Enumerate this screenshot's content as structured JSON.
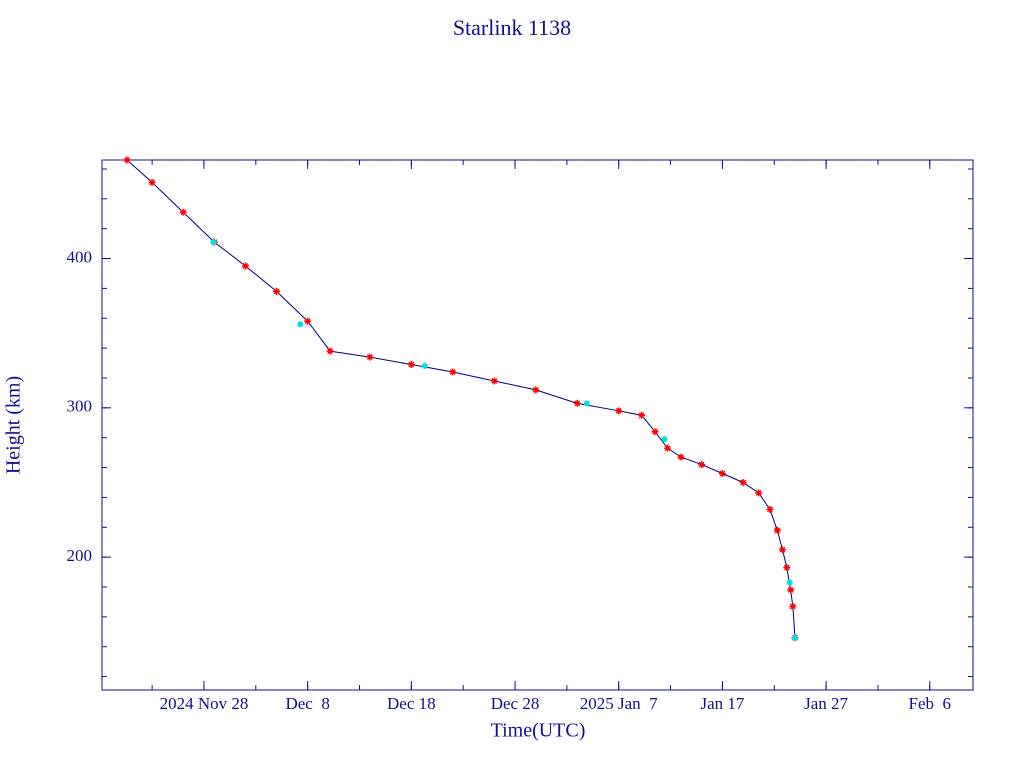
{
  "chart_data": {
    "type": "line",
    "title": "Starlink 1138",
    "xlabel": "Time(UTC)",
    "ylabel": "Height (km)",
    "xlim": [
      "2024-11-18T04:00",
      "2025-02-10T04:00"
    ],
    "xticks": [
      {
        "value": "2024-11-28T00:00",
        "label": "2024 Nov 28"
      },
      {
        "value": "2024-12-08T00:00",
        "label": "Dec  8"
      },
      {
        "value": "2024-12-18T00:00",
        "label": "Dec 18"
      },
      {
        "value": "2024-12-28T00:00",
        "label": "Dec 28"
      },
      {
        "value": "2025-01-07T00:00",
        "label": "2025 Jan  7"
      },
      {
        "value": "2025-01-17T00:00",
        "label": "Jan 17"
      },
      {
        "value": "2025-01-27T00:00",
        "label": "Jan 27"
      },
      {
        "value": "2025-02-06T00:00",
        "label": "Feb  6"
      }
    ],
    "ylim": [
      111,
      466
    ],
    "yticks": [
      200,
      300,
      400
    ],
    "series": [
      {
        "color": "#000080",
        "marker_color": "#ff0000",
        "x": [
          "2024-11-20T14:00",
          "2024-11-23T00:00",
          "2024-11-26T00:00",
          "2024-11-29T00:00",
          "2024-12-02T00:00",
          "2024-12-05T00:00",
          "2024-12-08T00:00",
          "2024-12-10T04:00",
          "2024-12-14T00:00",
          "2024-12-18T00:00",
          "2024-12-22T00:00",
          "2024-12-26T00:00",
          "2024-12-30T00:00",
          "2025-01-03T00:00",
          "2025-01-07T00:00",
          "2025-01-09T05:00",
          "2025-01-10T12:00",
          "2025-01-11T17:00",
          "2025-01-13T00:00",
          "2025-01-15T00:00",
          "2025-01-17T00:00",
          "2025-01-19T00:00",
          "2025-01-20T12:00",
          "2025-01-21T14:00",
          "2025-01-22T07:00",
          "2025-01-22T19:00",
          "2025-01-23T05:00",
          "2025-01-23T14:00",
          "2025-01-23T19:00",
          "2025-01-24T00:00"
        ],
        "values": [
          466,
          451,
          431,
          411,
          395,
          378,
          358,
          338,
          334,
          329,
          324,
          318,
          312,
          303,
          298,
          295,
          284,
          273,
          267,
          262,
          256,
          250,
          243,
          232,
          218,
          205,
          193,
          178,
          167,
          146
        ]
      },
      {
        "type": "scatter",
        "color": "#00e0e0",
        "x": [
          "2024-11-28T22:00",
          "2024-12-07T07:00",
          "2024-12-19T07:00",
          "2025-01-03T22:00",
          "2025-01-11T10:00",
          "2025-01-23T12:00",
          "2025-01-24T00:00"
        ],
        "values": [
          411,
          356,
          328,
          303,
          279,
          183,
          146
        ]
      }
    ]
  }
}
